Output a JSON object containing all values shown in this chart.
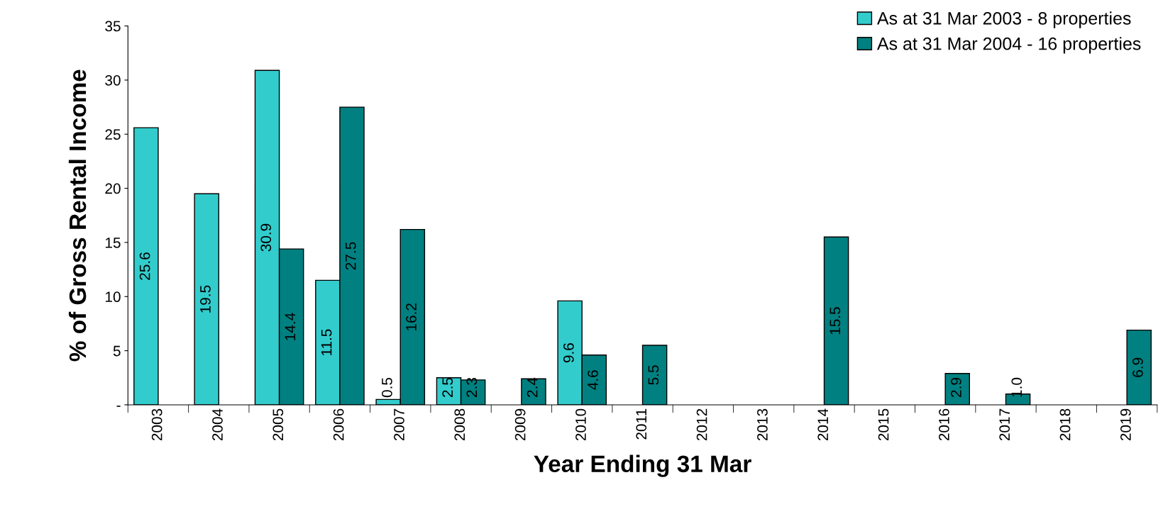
{
  "chart_data": {
    "type": "bar",
    "xlabel": "Year Ending 31 Mar",
    "ylabel": "% of Gross Rental Income",
    "categories": [
      "2003",
      "2004",
      "2005",
      "2006",
      "2007",
      "2008",
      "2009",
      "2010",
      "2011",
      "2012",
      "2013",
      "2014",
      "2015",
      "2016",
      "2017",
      "2018",
      "2019"
    ],
    "series": [
      {
        "name": "As at 31 Mar 2003 - 8 properties",
        "color": "#33cccc",
        "values": [
          25.6,
          19.5,
          30.9,
          11.5,
          0.5,
          2.5,
          null,
          9.6,
          null,
          null,
          null,
          null,
          null,
          null,
          null,
          null,
          null
        ],
        "value_labels": [
          "25.6",
          "19.5",
          "30.9",
          "11.5",
          "0.5",
          "2.5",
          null,
          "9.6",
          null,
          null,
          null,
          null,
          null,
          null,
          null,
          null,
          null
        ]
      },
      {
        "name": "As at 31 Mar 2004 - 16 properties",
        "color": "#008080",
        "values": [
          null,
          null,
          14.4,
          27.5,
          16.2,
          2.3,
          2.4,
          4.6,
          5.5,
          null,
          null,
          15.5,
          null,
          2.9,
          1.0,
          null,
          6.9
        ],
        "value_labels": [
          null,
          null,
          "14.4",
          "27.5",
          "16.2",
          "2.3",
          "2.4",
          "4.6",
          "5.5",
          null,
          null,
          "15.5",
          null,
          "2.9",
          "1.0",
          null,
          "6.9"
        ]
      }
    ],
    "ylim": [
      0,
      35
    ],
    "yticks": [
      {
        "value": 0,
        "label": "-"
      },
      5,
      10,
      15,
      20,
      25,
      30,
      35
    ],
    "grid": false,
    "legend": "top right"
  }
}
